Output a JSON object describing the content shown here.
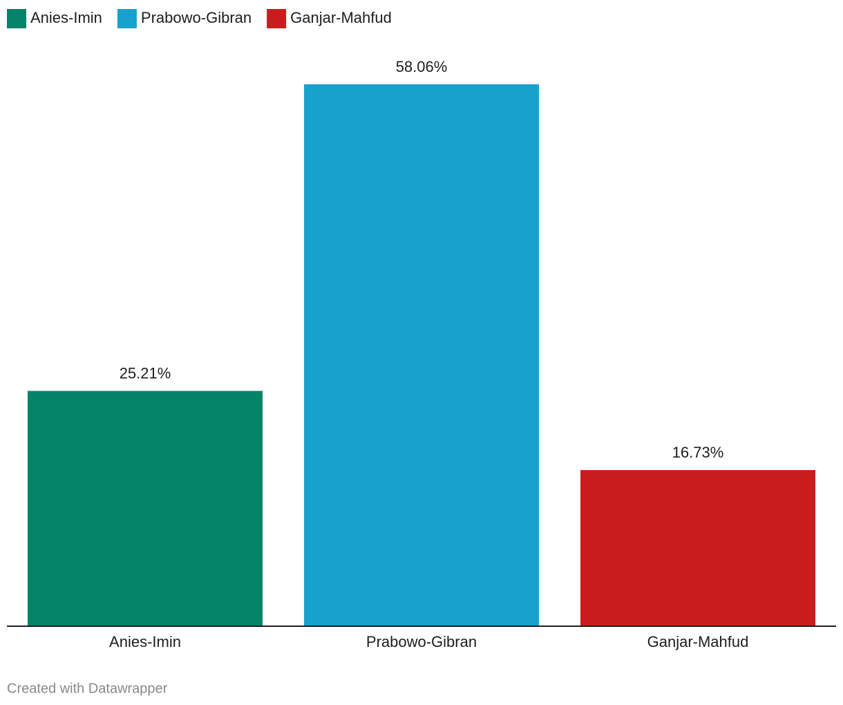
{
  "chart_data": {
    "type": "bar",
    "categories": [
      "Anies-Imin",
      "Prabowo-Gibran",
      "Ganjar-Mahfud"
    ],
    "values": [
      25.21,
      58.06,
      16.73
    ],
    "value_labels": [
      "25.21%",
      "58.06%",
      "16.73%"
    ],
    "colors": [
      "#038368",
      "#19a1cd",
      "#c71e1d"
    ],
    "legend": "top-left",
    "credit": "Created with Datawrapper"
  }
}
